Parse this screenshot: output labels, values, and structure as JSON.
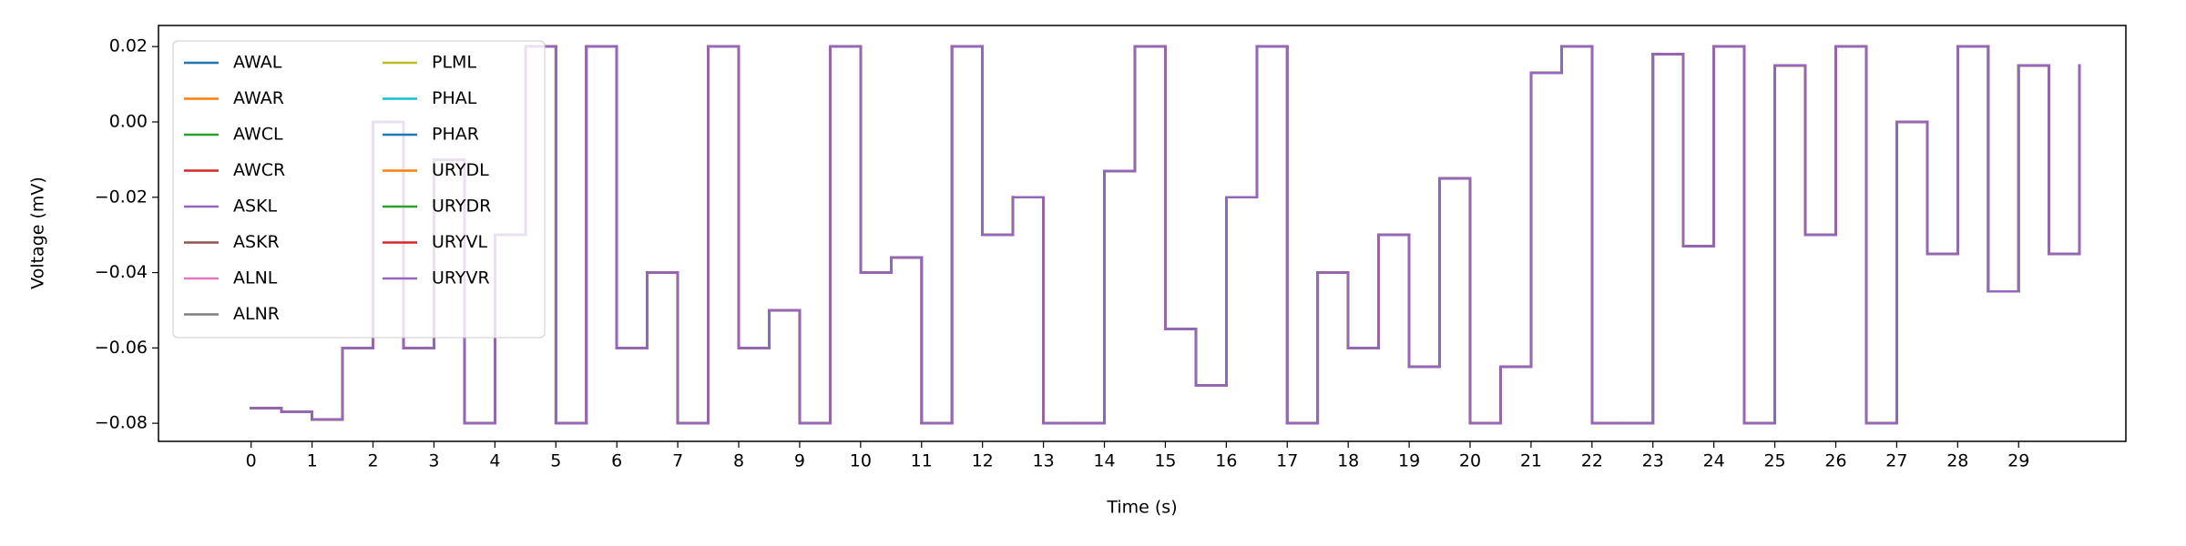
{
  "chart_data": {
    "type": "line",
    "drawstyle": "steps-post",
    "xlabel": "Time (s)",
    "ylabel": "Voltage (mV)",
    "x": [
      0,
      0.5,
      1,
      1.5,
      2,
      2.5,
      3,
      3.5,
      4,
      4.5,
      5,
      5.5,
      6,
      6.5,
      7,
      7.5,
      8,
      8.5,
      9,
      9.5,
      10,
      10.5,
      11,
      11.5,
      12,
      12.5,
      13,
      13.5,
      14,
      14.5,
      15,
      15.5,
      16,
      16.5,
      17,
      17.5,
      18,
      18.5,
      19,
      19.5,
      20,
      20.5,
      21,
      21.5,
      22,
      22.5,
      23,
      23.5,
      24,
      24.5,
      25,
      25.5,
      26,
      26.5,
      27,
      27.5,
      28,
      28.5,
      29,
      29.5,
      30
    ],
    "series": [
      {
        "name": "AWAL",
        "color": "#1f77b4",
        "values": [
          -0.076,
          -0.077,
          -0.079,
          -0.06,
          0.0,
          -0.06,
          -0.01,
          -0.08,
          -0.03,
          0.02,
          -0.08,
          0.02,
          -0.06,
          -0.04,
          -0.08,
          0.02,
          -0.06,
          -0.05,
          -0.08,
          0.02,
          -0.04,
          -0.036,
          -0.08,
          0.02,
          -0.03,
          -0.02,
          -0.08,
          -0.08,
          -0.013,
          0.02,
          -0.055,
          -0.07,
          -0.02,
          0.02,
          -0.08,
          -0.04,
          -0.06,
          -0.03,
          -0.065,
          -0.015,
          -0.08,
          -0.065,
          0.013,
          0.02,
          -0.08,
          -0.08,
          0.018,
          -0.033,
          0.02,
          -0.08,
          0.015,
          -0.03,
          0.02,
          -0.08,
          0.0,
          -0.035,
          0.02,
          -0.045,
          0.015,
          -0.035,
          0.015
        ]
      },
      {
        "name": "AWAR",
        "color": "#ff7f0e",
        "values": [
          -0.076,
          -0.077,
          -0.079,
          -0.06,
          0.0,
          -0.06,
          -0.01,
          -0.08,
          -0.03,
          0.02,
          -0.08,
          0.02,
          -0.06,
          -0.04,
          -0.08,
          0.02,
          -0.06,
          -0.05,
          -0.08,
          0.02,
          -0.04,
          -0.036,
          -0.08,
          0.02,
          -0.03,
          -0.02,
          -0.08,
          -0.08,
          -0.013,
          0.02,
          -0.055,
          -0.07,
          -0.02,
          0.02,
          -0.08,
          -0.04,
          -0.06,
          -0.03,
          -0.065,
          -0.015,
          -0.08,
          -0.065,
          0.013,
          0.02,
          -0.08,
          -0.08,
          0.018,
          -0.033,
          0.02,
          -0.08,
          0.015,
          -0.03,
          0.02,
          -0.08,
          0.0,
          -0.035,
          0.02,
          -0.045,
          0.015,
          -0.035,
          0.015
        ]
      },
      {
        "name": "AWCL",
        "color": "#2ca02c",
        "values": [
          -0.076,
          -0.077,
          -0.079,
          -0.06,
          0.0,
          -0.06,
          -0.01,
          -0.08,
          -0.03,
          0.02,
          -0.08,
          0.02,
          -0.06,
          -0.04,
          -0.08,
          0.02,
          -0.06,
          -0.05,
          -0.08,
          0.02,
          -0.04,
          -0.036,
          -0.08,
          0.02,
          -0.03,
          -0.02,
          -0.08,
          -0.08,
          -0.013,
          0.02,
          -0.055,
          -0.07,
          -0.02,
          0.02,
          -0.08,
          -0.04,
          -0.06,
          -0.03,
          -0.065,
          -0.015,
          -0.08,
          -0.065,
          0.013,
          0.02,
          -0.08,
          -0.08,
          0.018,
          -0.033,
          0.02,
          -0.08,
          0.015,
          -0.03,
          0.02,
          -0.08,
          0.0,
          -0.035,
          0.02,
          -0.045,
          0.015,
          -0.035,
          0.015
        ]
      },
      {
        "name": "AWCR",
        "color": "#d62728",
        "values": [
          -0.076,
          -0.077,
          -0.079,
          -0.06,
          0.0,
          -0.06,
          -0.01,
          -0.08,
          -0.03,
          0.02,
          -0.08,
          0.02,
          -0.06,
          -0.04,
          -0.08,
          0.02,
          -0.06,
          -0.05,
          -0.08,
          0.02,
          -0.04,
          -0.036,
          -0.08,
          0.02,
          -0.03,
          -0.02,
          -0.08,
          -0.08,
          -0.013,
          0.02,
          -0.055,
          -0.07,
          -0.02,
          0.02,
          -0.08,
          -0.04,
          -0.06,
          -0.03,
          -0.065,
          -0.015,
          -0.08,
          -0.065,
          0.013,
          0.02,
          -0.08,
          -0.08,
          0.018,
          -0.033,
          0.02,
          -0.08,
          0.015,
          -0.03,
          0.02,
          -0.08,
          0.0,
          -0.035,
          0.02,
          -0.045,
          0.015,
          -0.035,
          0.015
        ]
      },
      {
        "name": "ASKL",
        "color": "#9467bd",
        "values": [
          -0.076,
          -0.077,
          -0.079,
          -0.06,
          0.0,
          -0.06,
          -0.01,
          -0.08,
          -0.03,
          0.02,
          -0.08,
          0.02,
          -0.06,
          -0.04,
          -0.08,
          0.02,
          -0.06,
          -0.05,
          -0.08,
          0.02,
          -0.04,
          -0.036,
          -0.08,
          0.02,
          -0.03,
          -0.02,
          -0.08,
          -0.08,
          -0.013,
          0.02,
          -0.055,
          -0.07,
          -0.02,
          0.02,
          -0.08,
          -0.04,
          -0.06,
          -0.03,
          -0.065,
          -0.015,
          -0.08,
          -0.065,
          0.013,
          0.02,
          -0.08,
          -0.08,
          0.018,
          -0.033,
          0.02,
          -0.08,
          0.015,
          -0.03,
          0.02,
          -0.08,
          0.0,
          -0.035,
          0.02,
          -0.045,
          0.015,
          -0.035,
          0.015
        ]
      },
      {
        "name": "ASKR",
        "color": "#8c564b",
        "values": [
          -0.076,
          -0.077,
          -0.079,
          -0.06,
          0.0,
          -0.06,
          -0.01,
          -0.08,
          -0.03,
          0.02,
          -0.08,
          0.02,
          -0.06,
          -0.04,
          -0.08,
          0.02,
          -0.06,
          -0.05,
          -0.08,
          0.02,
          -0.04,
          -0.036,
          -0.08,
          0.02,
          -0.03,
          -0.02,
          -0.08,
          -0.08,
          -0.013,
          0.02,
          -0.055,
          -0.07,
          -0.02,
          0.02,
          -0.08,
          -0.04,
          -0.06,
          -0.03,
          -0.065,
          -0.015,
          -0.08,
          -0.065,
          0.013,
          0.02,
          -0.08,
          -0.08,
          0.018,
          -0.033,
          0.02,
          -0.08,
          0.015,
          -0.03,
          0.02,
          -0.08,
          0.0,
          -0.035,
          0.02,
          -0.045,
          0.015,
          -0.035,
          0.015
        ]
      },
      {
        "name": "ALNL",
        "color": "#e377c2",
        "values": [
          -0.076,
          -0.077,
          -0.079,
          -0.06,
          0.0,
          -0.06,
          -0.01,
          -0.08,
          -0.03,
          0.02,
          -0.08,
          0.02,
          -0.06,
          -0.04,
          -0.08,
          0.02,
          -0.06,
          -0.05,
          -0.08,
          0.02,
          -0.04,
          -0.036,
          -0.08,
          0.02,
          -0.03,
          -0.02,
          -0.08,
          -0.08,
          -0.013,
          0.02,
          -0.055,
          -0.07,
          -0.02,
          0.02,
          -0.08,
          -0.04,
          -0.06,
          -0.03,
          -0.065,
          -0.015,
          -0.08,
          -0.065,
          0.013,
          0.02,
          -0.08,
          -0.08,
          0.018,
          -0.033,
          0.02,
          -0.08,
          0.015,
          -0.03,
          0.02,
          -0.08,
          0.0,
          -0.035,
          0.02,
          -0.045,
          0.015,
          -0.035,
          0.015
        ]
      },
      {
        "name": "ALNR",
        "color": "#7f7f7f",
        "values": [
          -0.076,
          -0.077,
          -0.079,
          -0.06,
          0.0,
          -0.06,
          -0.01,
          -0.08,
          -0.03,
          0.02,
          -0.08,
          0.02,
          -0.06,
          -0.04,
          -0.08,
          0.02,
          -0.06,
          -0.05,
          -0.08,
          0.02,
          -0.04,
          -0.036,
          -0.08,
          0.02,
          -0.03,
          -0.02,
          -0.08,
          -0.08,
          -0.013,
          0.02,
          -0.055,
          -0.07,
          -0.02,
          0.02,
          -0.08,
          -0.04,
          -0.06,
          -0.03,
          -0.065,
          -0.015,
          -0.08,
          -0.065,
          0.013,
          0.02,
          -0.08,
          -0.08,
          0.018,
          -0.033,
          0.02,
          -0.08,
          0.015,
          -0.03,
          0.02,
          -0.08,
          0.0,
          -0.035,
          0.02,
          -0.045,
          0.015,
          -0.035,
          0.015
        ]
      },
      {
        "name": "PLML",
        "color": "#bcbd22",
        "values": [
          -0.076,
          -0.077,
          -0.079,
          -0.06,
          0.0,
          -0.06,
          -0.01,
          -0.08,
          -0.03,
          0.02,
          -0.08,
          0.02,
          -0.06,
          -0.04,
          -0.08,
          0.02,
          -0.06,
          -0.05,
          -0.08,
          0.02,
          -0.04,
          -0.036,
          -0.08,
          0.02,
          -0.03,
          -0.02,
          -0.08,
          -0.08,
          -0.013,
          0.02,
          -0.055,
          -0.07,
          -0.02,
          0.02,
          -0.08,
          -0.04,
          -0.06,
          -0.03,
          -0.065,
          -0.015,
          -0.08,
          -0.065,
          0.013,
          0.02,
          -0.08,
          -0.08,
          0.018,
          -0.033,
          0.02,
          -0.08,
          0.015,
          -0.03,
          0.02,
          -0.08,
          0.0,
          -0.035,
          0.02,
          -0.045,
          0.015,
          -0.035,
          0.015
        ]
      },
      {
        "name": "PHAL",
        "color": "#17becf",
        "values": [
          -0.076,
          -0.077,
          -0.079,
          -0.06,
          0.0,
          -0.06,
          -0.01,
          -0.08,
          -0.03,
          0.02,
          -0.08,
          0.02,
          -0.06,
          -0.04,
          -0.08,
          0.02,
          -0.06,
          -0.05,
          -0.08,
          0.02,
          -0.04,
          -0.036,
          -0.08,
          0.02,
          -0.03,
          -0.02,
          -0.08,
          -0.08,
          -0.013,
          0.02,
          -0.055,
          -0.07,
          -0.02,
          0.02,
          -0.08,
          -0.04,
          -0.06,
          -0.03,
          -0.065,
          -0.015,
          -0.08,
          -0.065,
          0.013,
          0.02,
          -0.08,
          -0.08,
          0.018,
          -0.033,
          0.02,
          -0.08,
          0.015,
          -0.03,
          0.02,
          -0.08,
          0.0,
          -0.035,
          0.02,
          -0.045,
          0.015,
          -0.035,
          0.015
        ]
      },
      {
        "name": "PHAR",
        "color": "#1f77b4",
        "values": [
          -0.076,
          -0.077,
          -0.079,
          -0.06,
          0.0,
          -0.06,
          -0.01,
          -0.08,
          -0.03,
          0.02,
          -0.08,
          0.02,
          -0.06,
          -0.04,
          -0.08,
          0.02,
          -0.06,
          -0.05,
          -0.08,
          0.02,
          -0.04,
          -0.036,
          -0.08,
          0.02,
          -0.03,
          -0.02,
          -0.08,
          -0.08,
          -0.013,
          0.02,
          -0.055,
          -0.07,
          -0.02,
          0.02,
          -0.08,
          -0.04,
          -0.06,
          -0.03,
          -0.065,
          -0.015,
          -0.08,
          -0.065,
          0.013,
          0.02,
          -0.08,
          -0.08,
          0.018,
          -0.033,
          0.02,
          -0.08,
          0.015,
          -0.03,
          0.02,
          -0.08,
          0.0,
          -0.035,
          0.02,
          -0.045,
          0.015,
          -0.035,
          0.015
        ]
      },
      {
        "name": "URYDL",
        "color": "#ff7f0e",
        "values": [
          -0.076,
          -0.077,
          -0.079,
          -0.06,
          0.0,
          -0.06,
          -0.01,
          -0.08,
          -0.03,
          0.02,
          -0.08,
          0.02,
          -0.06,
          -0.04,
          -0.08,
          0.02,
          -0.06,
          -0.05,
          -0.08,
          0.02,
          -0.04,
          -0.036,
          -0.08,
          0.02,
          -0.03,
          -0.02,
          -0.08,
          -0.08,
          -0.013,
          0.02,
          -0.055,
          -0.07,
          -0.02,
          0.02,
          -0.08,
          -0.04,
          -0.06,
          -0.03,
          -0.065,
          -0.015,
          -0.08,
          -0.065,
          0.013,
          0.02,
          -0.08,
          -0.08,
          0.018,
          -0.033,
          0.02,
          -0.08,
          0.015,
          -0.03,
          0.02,
          -0.08,
          0.0,
          -0.035,
          0.02,
          -0.045,
          0.015,
          -0.035,
          0.015
        ]
      },
      {
        "name": "URYDR",
        "color": "#2ca02c",
        "values": [
          -0.076,
          -0.077,
          -0.079,
          -0.06,
          0.0,
          -0.06,
          -0.01,
          -0.08,
          -0.03,
          0.02,
          -0.08,
          0.02,
          -0.06,
          -0.04,
          -0.08,
          0.02,
          -0.06,
          -0.05,
          -0.08,
          0.02,
          -0.04,
          -0.036,
          -0.08,
          0.02,
          -0.03,
          -0.02,
          -0.08,
          -0.08,
          -0.013,
          0.02,
          -0.055,
          -0.07,
          -0.02,
          0.02,
          -0.08,
          -0.04,
          -0.06,
          -0.03,
          -0.065,
          -0.015,
          -0.08,
          -0.065,
          0.013,
          0.02,
          -0.08,
          -0.08,
          0.018,
          -0.033,
          0.02,
          -0.08,
          0.015,
          -0.03,
          0.02,
          -0.08,
          0.0,
          -0.035,
          0.02,
          -0.045,
          0.015,
          -0.035,
          0.015
        ]
      },
      {
        "name": "URYVL",
        "color": "#d62728",
        "values": [
          -0.076,
          -0.077,
          -0.079,
          -0.06,
          0.0,
          -0.06,
          -0.01,
          -0.08,
          -0.03,
          0.02,
          -0.08,
          0.02,
          -0.06,
          -0.04,
          -0.08,
          0.02,
          -0.06,
          -0.05,
          -0.08,
          0.02,
          -0.04,
          -0.036,
          -0.08,
          0.02,
          -0.03,
          -0.02,
          -0.08,
          -0.08,
          -0.013,
          0.02,
          -0.055,
          -0.07,
          -0.02,
          0.02,
          -0.08,
          -0.04,
          -0.06,
          -0.03,
          -0.065,
          -0.015,
          -0.08,
          -0.065,
          0.013,
          0.02,
          -0.08,
          -0.08,
          0.018,
          -0.033,
          0.02,
          -0.08,
          0.015,
          -0.03,
          0.02,
          -0.08,
          0.0,
          -0.035,
          0.02,
          -0.045,
          0.015,
          -0.035,
          0.015
        ]
      },
      {
        "name": "URYVR",
        "color": "#9467bd",
        "values": [
          -0.076,
          -0.077,
          -0.079,
          -0.06,
          0.0,
          -0.06,
          -0.01,
          -0.08,
          -0.03,
          0.02,
          -0.08,
          0.02,
          -0.06,
          -0.04,
          -0.08,
          0.02,
          -0.06,
          -0.05,
          -0.08,
          0.02,
          -0.04,
          -0.036,
          -0.08,
          0.02,
          -0.03,
          -0.02,
          -0.08,
          -0.08,
          -0.013,
          0.02,
          -0.055,
          -0.07,
          -0.02,
          0.02,
          -0.08,
          -0.04,
          -0.06,
          -0.03,
          -0.065,
          -0.015,
          -0.08,
          -0.065,
          0.013,
          0.02,
          -0.08,
          -0.08,
          0.018,
          -0.033,
          0.02,
          -0.08,
          0.015,
          -0.03,
          0.02,
          -0.08,
          0.0,
          -0.035,
          0.02,
          -0.045,
          0.015,
          -0.035,
          0.015
        ]
      }
    ],
    "xlim": [
      -1.52,
      30.76
    ],
    "xticks": [
      0,
      1,
      2,
      3,
      4,
      5,
      6,
      7,
      8,
      9,
      10,
      11,
      12,
      13,
      14,
      15,
      16,
      17,
      18,
      19,
      20,
      21,
      22,
      23,
      24,
      25,
      26,
      27,
      28,
      29
    ],
    "ylim": [
      -0.0848,
      0.0256
    ],
    "yticks": [
      {
        "value": -0.08,
        "label": "−0.08"
      },
      {
        "value": -0.06,
        "label": "−0.06"
      },
      {
        "value": -0.04,
        "label": "−0.04"
      },
      {
        "value": -0.02,
        "label": "−0.02"
      },
      {
        "value": 0,
        "label": "0.00"
      },
      {
        "value": 0.02,
        "label": "0.02"
      }
    ],
    "grid": false,
    "legend": "upper left",
    "legend_columns": 2
  }
}
